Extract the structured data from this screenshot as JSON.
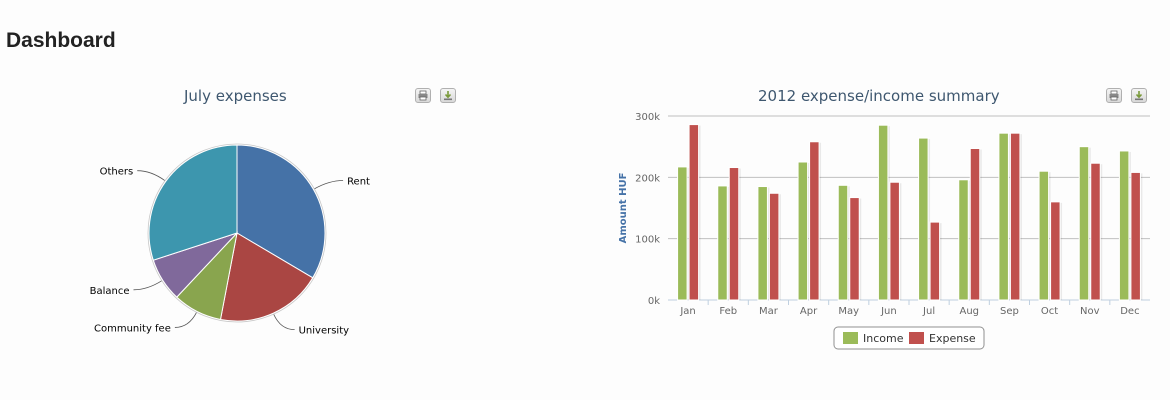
{
  "page": {
    "title": "Dashboard"
  },
  "toolbar": {
    "print_icon": "printer-icon",
    "download_icon": "download-icon"
  },
  "colors": {
    "income": "#9bbb59",
    "expense": "#c0504d",
    "title_text": "#3e576f",
    "axis_title": "#4572a7"
  },
  "chart_data": [
    {
      "type": "pie",
      "title": "July expenses",
      "slices": [
        {
          "label": "Rent",
          "value": 33.5,
          "color": "#4572a7"
        },
        {
          "label": "University",
          "value": 19.5,
          "color": "#aa4643"
        },
        {
          "label": "Community fee",
          "value": 9.0,
          "color": "#89a54e"
        },
        {
          "label": "Balance",
          "value": 8.0,
          "color": "#80699b"
        },
        {
          "label": "Others",
          "value": 30.0,
          "color": "#3d96ae"
        }
      ]
    },
    {
      "type": "bar",
      "title": "2012 expense/income summary",
      "categories": [
        "Jan",
        "Feb",
        "Mar",
        "Apr",
        "May",
        "Jun",
        "Jul",
        "Aug",
        "Sep",
        "Oct",
        "Nov",
        "Dec"
      ],
      "series": [
        {
          "name": "Income",
          "color": "#9bbb59",
          "values": [
            217000,
            186000,
            185000,
            225000,
            187000,
            285000,
            264000,
            196000,
            272000,
            210000,
            250000,
            243000
          ]
        },
        {
          "name": "Expense",
          "color": "#c0504d",
          "values": [
            286000,
            216000,
            174000,
            258000,
            167000,
            192000,
            127000,
            247000,
            272000,
            160000,
            223000,
            208000
          ]
        }
      ],
      "ylabel": "Amount HUF",
      "xlabel": "",
      "ylim": [
        0,
        300000
      ],
      "yticks": [
        0,
        100000,
        200000,
        300000
      ],
      "ytick_labels": [
        "0k",
        "100k",
        "200k",
        "300k"
      ],
      "grid": true,
      "legend": "bottom-center"
    }
  ]
}
